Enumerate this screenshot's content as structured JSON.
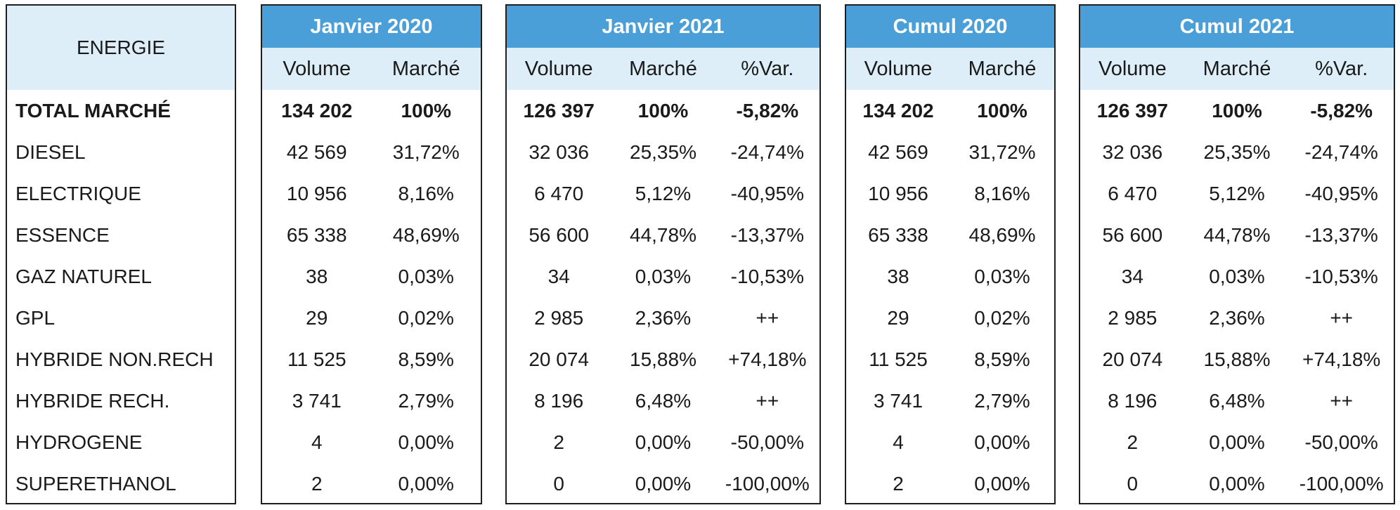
{
  "label_header": "ENERGIE",
  "rows": [
    "TOTAL MARCHÉ",
    "DIESEL",
    "ELECTRIQUE",
    "ESSENCE",
    "GAZ NATUREL",
    "GPL",
    "HYBRIDE NON.RECH",
    "HYBRIDE RECH.",
    "HYDROGENE",
    "SUPERETHANOL"
  ],
  "blocks": [
    {
      "title": "Janvier 2020",
      "cols": [
        "Volume",
        "Marché"
      ],
      "data": [
        [
          "134 202",
          "100%"
        ],
        [
          "42 569",
          "31,72%"
        ],
        [
          "10 956",
          "8,16%"
        ],
        [
          "65 338",
          "48,69%"
        ],
        [
          "38",
          "0,03%"
        ],
        [
          "29",
          "0,02%"
        ],
        [
          "11 525",
          "8,59%"
        ],
        [
          "3 741",
          "2,79%"
        ],
        [
          "4",
          "0,00%"
        ],
        [
          "2",
          "0,00%"
        ]
      ]
    },
    {
      "title": "Janvier 2021",
      "cols": [
        "Volume",
        "Marché",
        "%Var."
      ],
      "data": [
        [
          "126 397",
          "100%",
          "-5,82%"
        ],
        [
          "32 036",
          "25,35%",
          "-24,74%"
        ],
        [
          "6 470",
          "5,12%",
          "-40,95%"
        ],
        [
          "56 600",
          "44,78%",
          "-13,37%"
        ],
        [
          "34",
          "0,03%",
          "-10,53%"
        ],
        [
          "2 985",
          "2,36%",
          "++"
        ],
        [
          "20 074",
          "15,88%",
          "+74,18%"
        ],
        [
          "8 196",
          "6,48%",
          "++"
        ],
        [
          "2",
          "0,00%",
          "-50,00%"
        ],
        [
          "0",
          "0,00%",
          "-100,00%"
        ]
      ]
    },
    {
      "title": "Cumul 2020",
      "cols": [
        "Volume",
        "Marché"
      ],
      "data": [
        [
          "134 202",
          "100%"
        ],
        [
          "42 569",
          "31,72%"
        ],
        [
          "10 956",
          "8,16%"
        ],
        [
          "65 338",
          "48,69%"
        ],
        [
          "38",
          "0,03%"
        ],
        [
          "29",
          "0,02%"
        ],
        [
          "11 525",
          "8,59%"
        ],
        [
          "3 741",
          "2,79%"
        ],
        [
          "4",
          "0,00%"
        ],
        [
          "2",
          "0,00%"
        ]
      ]
    },
    {
      "title": "Cumul 2021",
      "cols": [
        "Volume",
        "Marché",
        "%Var."
      ],
      "data": [
        [
          "126 397",
          "100%",
          "-5,82%"
        ],
        [
          "32 036",
          "25,35%",
          "-24,74%"
        ],
        [
          "6 470",
          "5,12%",
          "-40,95%"
        ],
        [
          "56 600",
          "44,78%",
          "-13,37%"
        ],
        [
          "34",
          "0,03%",
          "-10,53%"
        ],
        [
          "2 985",
          "2,36%",
          "++"
        ],
        [
          "20 074",
          "15,88%",
          "+74,18%"
        ],
        [
          "8 196",
          "6,48%",
          "++"
        ],
        [
          "2",
          "0,00%",
          "-50,00%"
        ],
        [
          "0",
          "0,00%",
          "-100,00%"
        ]
      ]
    }
  ],
  "colors": {
    "header_blue": "#4a9fd8",
    "subheader_light": "#ddeef8"
  }
}
